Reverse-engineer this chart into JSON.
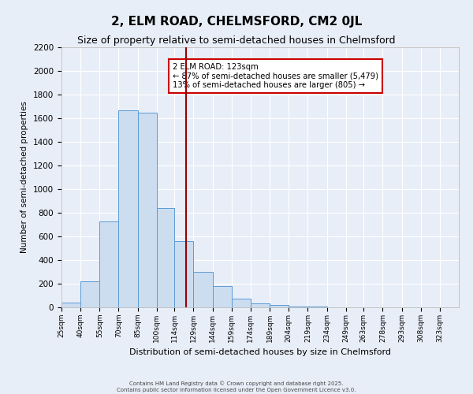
{
  "title": "2, ELM ROAD, CHELMSFORD, CM2 0JL",
  "subtitle": "Size of property relative to semi-detached houses in Chelmsford",
  "xlabel": "Distribution of semi-detached houses by size in Chelmsford",
  "ylabel": "Number of semi-detached properties",
  "bar_labels": [
    "25sqm",
    "40sqm",
    "55sqm",
    "70sqm",
    "85sqm",
    "100sqm",
    "114sqm",
    "129sqm",
    "144sqm",
    "159sqm",
    "174sqm",
    "189sqm",
    "204sqm",
    "219sqm",
    "234sqm",
    "249sqm",
    "263sqm",
    "278sqm",
    "293sqm",
    "308sqm",
    "323sqm"
  ],
  "bar_values": [
    40,
    220,
    730,
    1670,
    1650,
    840,
    560,
    300,
    180,
    75,
    35,
    20,
    10,
    5,
    2,
    1,
    0,
    0,
    0,
    0,
    0
  ],
  "bin_edges": [
    25,
    40,
    55,
    70,
    85,
    100,
    114,
    129,
    144,
    159,
    174,
    189,
    204,
    219,
    234,
    249,
    263,
    278,
    293,
    308,
    323,
    338
  ],
  "bar_color": "#ccddf0",
  "bar_edge_color": "#5b9bd5",
  "property_size": 123,
  "vline_color": "#990000",
  "annotation_text": "2 ELM ROAD: 123sqm\n← 87% of semi-detached houses are smaller (5,479)\n13% of semi-detached houses are larger (805) →",
  "annotation_box_color": "#ffffff",
  "annotation_box_edge": "#cc0000",
  "ylim": [
    0,
    2200
  ],
  "yticks": [
    0,
    200,
    400,
    600,
    800,
    1000,
    1200,
    1400,
    1600,
    1800,
    2000,
    2200
  ],
  "bg_color": "#e8eef8",
  "grid_color": "#ffffff",
  "footer1": "Contains HM Land Registry data © Crown copyright and database right 2025.",
  "footer2": "Contains public sector information licensed under the Open Government Licence v3.0.",
  "title_fontsize": 11,
  "subtitle_fontsize": 9
}
